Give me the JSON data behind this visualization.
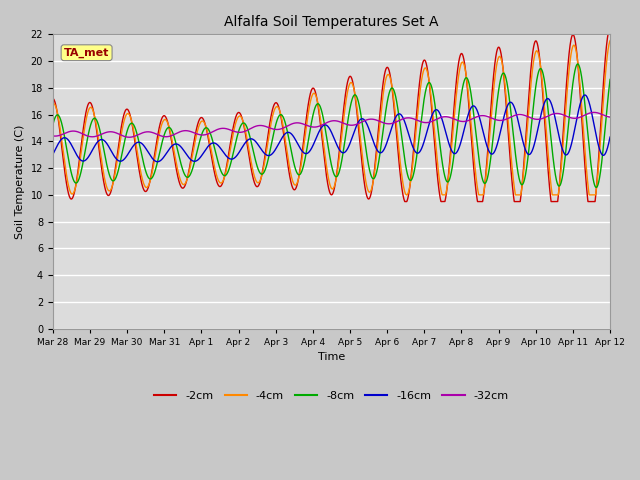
{
  "title": "Alfalfa Soil Temperatures Set A",
  "xlabel": "Time",
  "ylabel": "Soil Temperature (C)",
  "ylim": [
    0,
    22
  ],
  "yticks": [
    0,
    2,
    4,
    6,
    8,
    10,
    12,
    14,
    16,
    18,
    20,
    22
  ],
  "fig_facecolor": "#c8c8c8",
  "axes_facecolor": "#dcdcdc",
  "grid_color": "#ffffff",
  "series_colors": {
    "-2cm": "#cc0000",
    "-4cm": "#ff8800",
    "-8cm": "#00aa00",
    "-16cm": "#0000cc",
    "-32cm": "#aa00aa"
  },
  "annotation_text": "TA_met",
  "annotation_color": "#990000",
  "annotation_bg": "#ffff88",
  "legend_labels": [
    "-2cm",
    "-4cm",
    "-8cm",
    "-16cm",
    "-32cm"
  ],
  "tick_positions": [
    0,
    1,
    2,
    3,
    4,
    5,
    6,
    7,
    8,
    9,
    10,
    11,
    12,
    13,
    14,
    15
  ],
  "tick_labels": [
    "Mar 28",
    "Mar 29",
    "Mar 30",
    "Mar 31",
    "Apr 1",
    "Apr 2",
    "Apr 3",
    "Apr 4",
    "Apr 5",
    "Apr 6",
    "Apr 7",
    "Apr 8",
    "Apr 9",
    "Apr 10",
    "Apr 11",
    "Apr 12"
  ]
}
